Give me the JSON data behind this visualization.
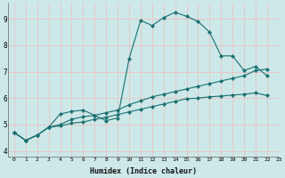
{
  "xlabel": "Humidex (Indice chaleur)",
  "background_color": "#cce8e8",
  "grid_color": "#e8c8c8",
  "line_color": "#1a7070",
  "xlim": [
    -0.5,
    23
  ],
  "ylim": [
    3.8,
    9.6
  ],
  "yticks": [
    4,
    5,
    6,
    7,
    8,
    9
  ],
  "xticks": [
    0,
    1,
    2,
    3,
    4,
    5,
    6,
    7,
    8,
    9,
    10,
    11,
    12,
    13,
    14,
    15,
    16,
    17,
    18,
    19,
    20,
    21,
    22,
    23
  ],
  "series": [
    {
      "x": [
        0,
        1,
        2,
        3,
        4,
        5,
        6,
        7,
        8,
        9,
        10,
        11,
        12,
        13,
        14,
        15,
        16,
        17,
        18,
        19,
        20,
        21,
        22
      ],
      "y": [
        4.7,
        4.4,
        4.6,
        4.9,
        5.4,
        5.5,
        5.55,
        5.35,
        5.15,
        5.25,
        7.5,
        8.95,
        8.75,
        9.05,
        9.25,
        9.1,
        8.9,
        8.5,
        7.6,
        7.6,
        7.05,
        7.2,
        6.85
      ]
    },
    {
      "x": [
        0,
        1,
        2,
        3,
        4,
        5,
        6,
        7,
        8,
        9,
        10,
        11,
        12,
        13,
        14,
        15,
        16,
        17,
        18,
        19,
        20,
        21,
        22
      ],
      "y": [
        4.7,
        4.4,
        4.6,
        4.9,
        5.0,
        5.2,
        5.3,
        5.35,
        5.45,
        5.55,
        5.75,
        5.9,
        6.05,
        6.15,
        6.25,
        6.35,
        6.45,
        6.55,
        6.65,
        6.75,
        6.85,
        7.05,
        7.1
      ]
    },
    {
      "x": [
        0,
        1,
        2,
        3,
        4,
        5,
        6,
        7,
        8,
        9,
        10,
        11,
        12,
        13,
        14,
        15,
        16,
        17,
        18,
        19,
        20,
        21,
        22
      ],
      "y": [
        4.7,
        4.4,
        4.6,
        4.9,
        4.95,
        5.05,
        5.1,
        5.2,
        5.28,
        5.38,
        5.48,
        5.58,
        5.68,
        5.78,
        5.88,
        5.98,
        6.0,
        6.05,
        6.08,
        6.12,
        6.15,
        6.2,
        6.1
      ]
    }
  ]
}
